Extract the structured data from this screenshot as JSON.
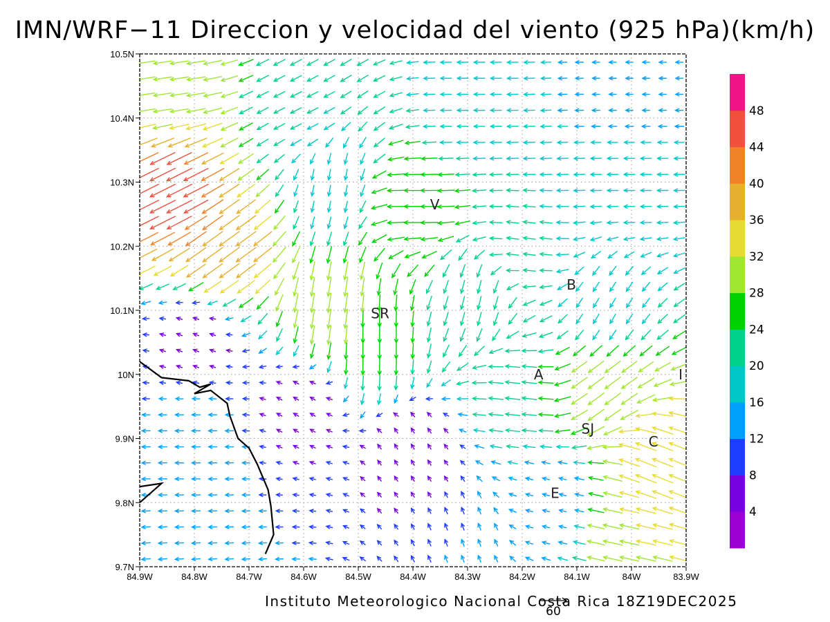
{
  "title": "IMN/WRF−11 Direccion y velocidad del viento (925 hPa)(km/h)",
  "footer": "Instituto Meteorologico Nacional Costa Rica 18Z19DEC2025",
  "reference_vector": {
    "label": "60",
    "speed": 60
  },
  "map": {
    "lon_range": [
      -84.9,
      -83.9
    ],
    "lat_range": [
      9.7,
      10.5
    ],
    "lon_ticks": [
      {
        "value": -84.9,
        "label": "84.9W"
      },
      {
        "value": -84.8,
        "label": "84.8W"
      },
      {
        "value": -84.7,
        "label": "84.7W"
      },
      {
        "value": -84.6,
        "label": "84.6W"
      },
      {
        "value": -84.5,
        "label": "84.5W"
      },
      {
        "value": -84.4,
        "label": "84.4W"
      },
      {
        "value": -84.3,
        "label": "84.3W"
      },
      {
        "value": -84.2,
        "label": "84.2W"
      },
      {
        "value": -84.1,
        "label": "84.1W"
      },
      {
        "value": -84.0,
        "label": "84W"
      },
      {
        "value": -83.9,
        "label": "83.9W"
      }
    ],
    "lat_ticks": [
      {
        "value": 9.7,
        "label": "9.7N"
      },
      {
        "value": 9.8,
        "label": "9.8N"
      },
      {
        "value": 9.9,
        "label": "9.9N"
      },
      {
        "value": 10.0,
        "label": "10N"
      },
      {
        "value": 10.1,
        "label": "10.1N"
      },
      {
        "value": 10.2,
        "label": "10.2N"
      },
      {
        "value": 10.3,
        "label": "10.3N"
      },
      {
        "value": 10.4,
        "label": "10.4N"
      },
      {
        "value": 10.5,
        "label": "10.5N"
      }
    ],
    "gridlines": true,
    "places": [
      {
        "name": "V",
        "lon": -84.36,
        "lat": 10.265
      },
      {
        "name": "B",
        "lon": -84.11,
        "lat": 10.14
      },
      {
        "name": "SR",
        "lon": -84.46,
        "lat": 10.095
      },
      {
        "name": "A",
        "lon": -84.17,
        "lat": 10.0
      },
      {
        "name": "I",
        "lon": -83.91,
        "lat": 10.0
      },
      {
        "name": "SJ",
        "lon": -84.08,
        "lat": 9.915
      },
      {
        "name": "C",
        "lon": -83.96,
        "lat": 9.895
      },
      {
        "name": "E",
        "lon": -84.14,
        "lat": 9.815
      }
    ],
    "coastline": [
      [
        [
          -84.9,
          10.02
        ],
        [
          -84.86,
          9.995
        ],
        [
          -84.81,
          9.99
        ],
        [
          -84.79,
          9.98
        ],
        [
          -84.77,
          9.985
        ],
        [
          -84.8,
          9.97
        ],
        [
          -84.77,
          9.975
        ],
        [
          -84.74,
          9.955
        ],
        [
          -84.735,
          9.935
        ],
        [
          -84.72,
          9.9
        ],
        [
          -84.7,
          9.885
        ],
        [
          -84.685,
          9.86
        ],
        [
          -84.665,
          9.82
        ],
        [
          -84.66,
          9.795
        ],
        [
          -84.655,
          9.75
        ],
        [
          -84.67,
          9.72
        ]
      ],
      [
        [
          -84.9,
          9.8
        ],
        [
          -84.88,
          9.815
        ],
        [
          -84.86,
          9.83
        ],
        [
          -84.9,
          9.825
        ]
      ]
    ]
  },
  "colorbar": {
    "levels": [
      4,
      8,
      12,
      16,
      20,
      24,
      28,
      32,
      36,
      40,
      44,
      48
    ],
    "colors": [
      "#9b00d0",
      "#7800e0",
      "#1e3cff",
      "#00a0ff",
      "#00c8c8",
      "#00d28c",
      "#00d200",
      "#a0e632",
      "#e6dc32",
      "#e6af2d",
      "#f08228",
      "#f0503c",
      "#f01488"
    ]
  },
  "wind_regions": [
    {
      "lon": -84.85,
      "lat": 10.45,
      "u": -20,
      "v": -3,
      "speed": 30
    },
    {
      "lon": -84.85,
      "lat": 10.28,
      "u": -28,
      "v": -14,
      "speed": 46
    },
    {
      "lon": -84.75,
      "lat": 10.2,
      "u": -22,
      "v": -16,
      "speed": 40
    },
    {
      "lon": -84.55,
      "lat": 10.3,
      "u": -3,
      "v": -17,
      "speed": 18
    },
    {
      "lon": -84.55,
      "lat": 10.1,
      "u": -3,
      "v": -20,
      "speed": 32
    },
    {
      "lon": -84.47,
      "lat": 10.05,
      "u": 0,
      "v": -22,
      "speed": 26
    },
    {
      "lon": -84.3,
      "lat": 10.42,
      "u": -18,
      "v": 0,
      "speed": 18
    },
    {
      "lon": -84.0,
      "lat": 10.45,
      "u": -14,
      "v": 0,
      "speed": 12
    },
    {
      "lon": -84.0,
      "lat": 10.3,
      "u": -15,
      "v": 0,
      "speed": 18
    },
    {
      "lon": -84.8,
      "lat": 10.05,
      "u": -5,
      "v": 2,
      "speed": 6
    },
    {
      "lon": -84.8,
      "lat": 9.9,
      "u": -10,
      "v": 0,
      "speed": 14
    },
    {
      "lon": -84.6,
      "lat": 9.95,
      "u": -5,
      "v": 3,
      "speed": 6
    },
    {
      "lon": -84.4,
      "lat": 9.88,
      "u": -3,
      "v": 5,
      "speed": 5
    },
    {
      "lon": -84.3,
      "lat": 9.75,
      "u": -3,
      "v": 8,
      "speed": 12
    },
    {
      "lon": -84.2,
      "lat": 9.97,
      "u": -18,
      "v": 2,
      "speed": 24
    },
    {
      "lon": -84.05,
      "lat": 9.98,
      "u": -16,
      "v": -12,
      "speed": 32
    },
    {
      "lon": -83.95,
      "lat": 9.85,
      "u": -20,
      "v": 8,
      "speed": 36
    },
    {
      "lon": -84.0,
      "lat": 9.76,
      "u": -18,
      "v": 4,
      "speed": 32
    },
    {
      "lon": -84.15,
      "lat": 9.8,
      "u": -12,
      "v": 3,
      "speed": 12
    },
    {
      "lon": -84.2,
      "lat": 10.2,
      "u": -16,
      "v": 2,
      "speed": 20
    },
    {
      "lon": -84.28,
      "lat": 10.12,
      "u": -3,
      "v": -12,
      "speed": 22
    },
    {
      "lon": -84.05,
      "lat": 10.1,
      "u": -6,
      "v": -10,
      "speed": 18
    },
    {
      "lon": -84.6,
      "lat": 10.4,
      "u": -16,
      "v": -8,
      "speed": 20
    },
    {
      "lon": -84.4,
      "lat": 10.27,
      "u": -14,
      "v": 0,
      "speed": 28
    }
  ]
}
